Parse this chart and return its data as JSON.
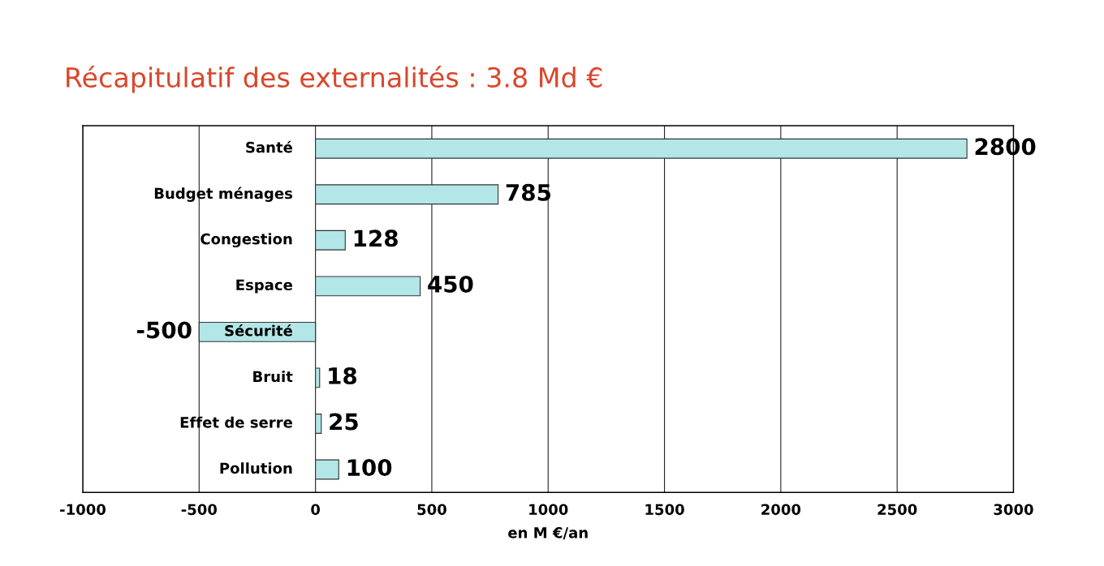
{
  "chart_data": {
    "type": "bar",
    "orientation": "horizontal",
    "title": "Récapitulatif des externalités : 3.8 Md €",
    "xlabel": "en M €/an",
    "categories": [
      "Santé",
      "Budget ménages",
      "Congestion",
      "Espace",
      "Sécurité",
      "Bruit",
      "Effet de serre",
      "Pollution"
    ],
    "values": [
      2800,
      785,
      128,
      450,
      -500,
      18,
      25,
      100
    ],
    "color": "#b3e6e6",
    "data_labels": true,
    "grid": "x",
    "xlim": [
      -1000,
      3000
    ],
    "xticks": [
      -1000,
      -500,
      0,
      500,
      1000,
      1500,
      2000,
      2500,
      3000
    ]
  }
}
